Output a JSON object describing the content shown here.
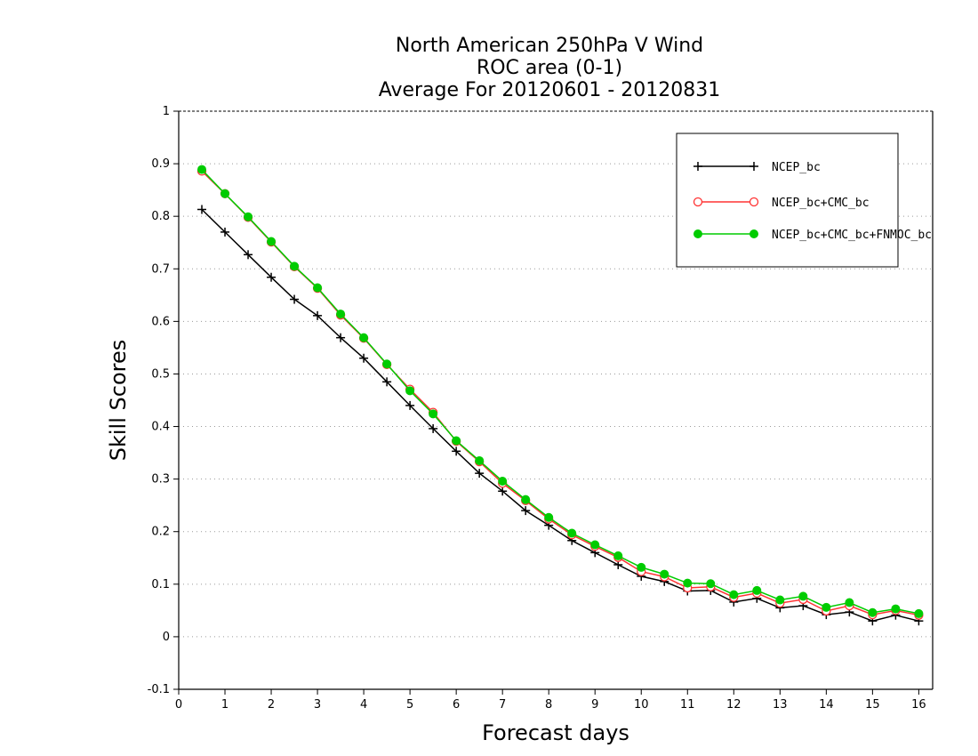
{
  "chart_data": {
    "type": "line",
    "title": [
      "North American 250hPa V Wind",
      "ROC area (0-1)",
      "Average For 20120601 - 20120831"
    ],
    "xlabel": "Forecast days",
    "ylabel": "Skill Scores",
    "xlim": [
      0,
      16.3
    ],
    "ylim": [
      -0.1,
      1
    ],
    "xticks": [
      0,
      1,
      2,
      3,
      4,
      5,
      6,
      7,
      8,
      9,
      10,
      11,
      12,
      13,
      14,
      15,
      16
    ],
    "yticks": [
      -0.1,
      0,
      0.1,
      0.2,
      0.3,
      0.4,
      0.5,
      0.6,
      0.7,
      0.8,
      0.9,
      1
    ],
    "ytick_labels": [
      "-0.1",
      "0",
      "0.1",
      "0.2",
      "0.3",
      "0.4",
      "0.5",
      "0.6",
      "0.7",
      "0.8",
      "0.9",
      "1"
    ],
    "grid": "horizontal dotted",
    "legend_position": "top-right",
    "x": [
      0.5,
      1.0,
      1.5,
      2.0,
      2.5,
      3.0,
      3.5,
      4.0,
      4.5,
      5.0,
      5.5,
      6.0,
      6.5,
      7.0,
      7.5,
      8.0,
      8.5,
      9.0,
      9.5,
      10.0,
      10.5,
      11.0,
      11.5,
      12.0,
      12.5,
      13.0,
      13.5,
      14.0,
      14.5,
      15.0,
      15.5,
      16.0
    ],
    "series": [
      {
        "name": "NCEP_bc",
        "color": "#000000",
        "marker": "plus",
        "values": [
          0.813,
          0.77,
          0.727,
          0.684,
          0.642,
          0.611,
          0.569,
          0.53,
          0.485,
          0.44,
          0.396,
          0.353,
          0.311,
          0.277,
          0.24,
          0.212,
          0.183,
          0.16,
          0.137,
          0.115,
          0.105,
          0.087,
          0.088,
          0.066,
          0.073,
          0.055,
          0.059,
          0.042,
          0.047,
          0.03,
          0.041,
          0.03
        ]
      },
      {
        "name": "NCEP_bc+CMC_bc",
        "color": "#ff3333",
        "marker": "open-circle",
        "values": [
          0.886,
          0.843,
          0.798,
          0.751,
          0.704,
          0.663,
          0.612,
          0.568,
          0.518,
          0.471,
          0.427,
          0.372,
          0.333,
          0.292,
          0.259,
          0.224,
          0.194,
          0.172,
          0.151,
          0.124,
          0.114,
          0.093,
          0.095,
          0.075,
          0.083,
          0.064,
          0.071,
          0.049,
          0.059,
          0.042,
          0.05,
          0.041
        ]
      },
      {
        "name": "NCEP_bc+CMC_bc+FNMOC_bc",
        "color": "#00cc00",
        "marker": "filled-circle",
        "values": [
          0.889,
          0.843,
          0.799,
          0.752,
          0.705,
          0.664,
          0.614,
          0.569,
          0.519,
          0.468,
          0.424,
          0.373,
          0.335,
          0.296,
          0.261,
          0.227,
          0.197,
          0.175,
          0.154,
          0.132,
          0.119,
          0.102,
          0.101,
          0.08,
          0.088,
          0.07,
          0.077,
          0.056,
          0.065,
          0.046,
          0.053,
          0.044
        ]
      }
    ]
  }
}
